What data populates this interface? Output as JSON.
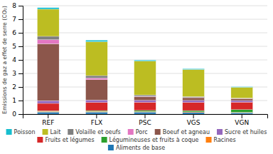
{
  "chart_data": {
    "type": "bar",
    "stacked": true,
    "y_label": "Emissions de gaz a effet de serre (CO₂)",
    "categories": [
      "REF",
      "FLX",
      "PSC",
      "VGS",
      "VGN"
    ],
    "series": [
      {
        "name": "Aliments de base",
        "values": [
          0.15,
          0.15,
          0.15,
          0.12,
          0.1
        ]
      },
      {
        "name": "Racines",
        "values": [
          0.05,
          0.05,
          0.04,
          0.04,
          0.03
        ]
      },
      {
        "name": "Légumineuses et fruits à coque",
        "values": [
          0.04,
          0.06,
          0.08,
          0.1,
          0.2
        ]
      },
      {
        "name": "Fruits et légumes",
        "values": [
          0.55,
          0.6,
          0.6,
          0.6,
          0.55
        ]
      },
      {
        "name": "Sucre et huiles",
        "values": [
          0.2,
          0.18,
          0.15,
          0.15,
          0.12
        ]
      },
      {
        "name": "Boeuf et agneau",
        "values": [
          4.2,
          1.5,
          0.25,
          0.2,
          0.15
        ]
      },
      {
        "name": "Porc",
        "values": [
          0.3,
          0.12,
          0.04,
          0.02,
          0.01
        ]
      },
      {
        "name": "Volaille et oeufs",
        "values": [
          0.25,
          0.18,
          0.1,
          0.06,
          0.02
        ]
      },
      {
        "name": "Lait",
        "values": [
          2.0,
          2.5,
          2.5,
          2.0,
          0.8
        ]
      },
      {
        "name": "Poisson",
        "values": [
          0.12,
          0.12,
          0.08,
          0.06,
          0.04
        ]
      }
    ],
    "ylim": [
      0,
      8
    ],
    "yticks": [
      0,
      1,
      2,
      3,
      4,
      5,
      6,
      7,
      8
    ],
    "grid": true,
    "legend": "bottom"
  }
}
